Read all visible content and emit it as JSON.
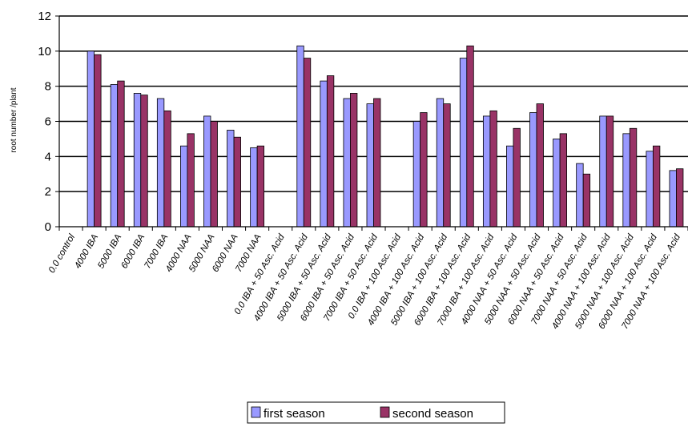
{
  "chart_data": {
    "type": "bar",
    "title": "",
    "xlabel": "",
    "ylabel": "root number /plant",
    "ylim": [
      0,
      12
    ],
    "yticks": [
      0,
      2,
      4,
      6,
      8,
      10,
      12
    ],
    "grid": "horizontal",
    "legend_position": "bottom",
    "categories": [
      "0.0 control",
      "4000 IBA",
      "5000 IBA",
      "6000 IBA",
      "7000 IBA",
      "4000 NAA",
      "5000 NAA",
      "6000 NAA",
      "7000 NAA",
      "0.0 IBA + 50 Asc. Acid",
      "4000 IBA + 50 Asc. Acid",
      "5000 IBA + 50 Asc. Acid",
      "6000 IBA + 50 Asc. Acid",
      "7000 IBA + 50 Asc. Acid",
      "0.0 IBA + 100 Asc. Acid",
      "4000 IBA + 100 Asc. Acid",
      "5000 IBA + 100 Asc. Acid",
      "6000 IBA + 100 Asc. Acid",
      "7000 IBA + 100 Asc. Acid",
      "4000 NAA + 50 Asc. Acid",
      "5000 NAA + 50 Asc. Acid",
      "6000 NAA + 50 Asc. Acid",
      "7000 NAA + 50 Asc. Acid",
      "4000 NAA + 100 Asc. Acid",
      "5000 NAA + 100 Asc. Acid",
      "6000 NAA + 100 Asc. Acid",
      "7000 NAA + 100 Asc. Acid"
    ],
    "series": [
      {
        "name": "first season",
        "color": "#9999ff",
        "values": [
          0,
          10.0,
          8.1,
          7.6,
          7.3,
          4.6,
          6.3,
          5.5,
          4.5,
          0,
          10.3,
          8.3,
          7.3,
          7.0,
          0,
          6.0,
          7.3,
          9.6,
          6.3,
          4.6,
          6.5,
          5.0,
          3.6,
          6.3,
          5.3,
          4.3,
          3.2
        ]
      },
      {
        "name": "second season",
        "color": "#993366",
        "values": [
          0,
          9.8,
          8.3,
          7.5,
          6.6,
          5.3,
          6.0,
          5.1,
          4.6,
          0,
          9.6,
          8.6,
          7.6,
          7.3,
          0,
          6.5,
          7.0,
          10.3,
          6.6,
          5.6,
          7.0,
          5.3,
          3.0,
          6.3,
          5.6,
          4.6,
          3.3
        ]
      }
    ]
  }
}
